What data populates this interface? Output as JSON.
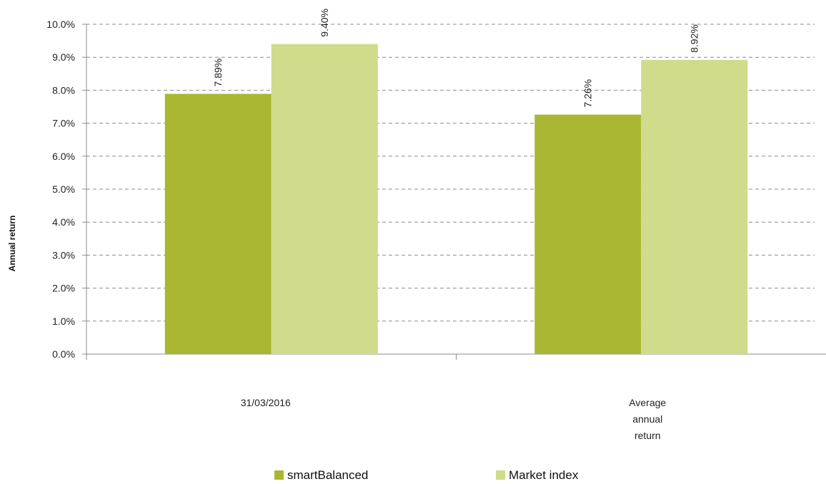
{
  "chart_data": {
    "type": "bar",
    "categories": [
      [
        "31/03/2016"
      ],
      [
        "Average",
        "annual",
        "return"
      ]
    ],
    "series": [
      {
        "name": "smartBalanced",
        "values": [
          7.89,
          7.26
        ],
        "labels": [
          "7.89%",
          "7.26%"
        ],
        "color": "#aab732"
      },
      {
        "name": "Market index",
        "values": [
          9.4,
          8.92
        ],
        "labels": [
          "9.40%",
          "8.92%"
        ],
        "color": "#d0db8b"
      }
    ],
    "title": "",
    "xlabel": "",
    "ylabel": "Annual return",
    "ylim": [
      0,
      10
    ],
    "yticks": [
      0,
      1,
      2,
      3,
      4,
      5,
      6,
      7,
      8,
      9,
      10
    ],
    "ytick_labels": [
      "0.0%",
      "1.0%",
      "2.0%",
      "3.0%",
      "4.0%",
      "5.0%",
      "6.0%",
      "7.0%",
      "8.0%",
      "9.0%",
      "10.0%"
    ],
    "grid": true,
    "legend": "bottom"
  }
}
